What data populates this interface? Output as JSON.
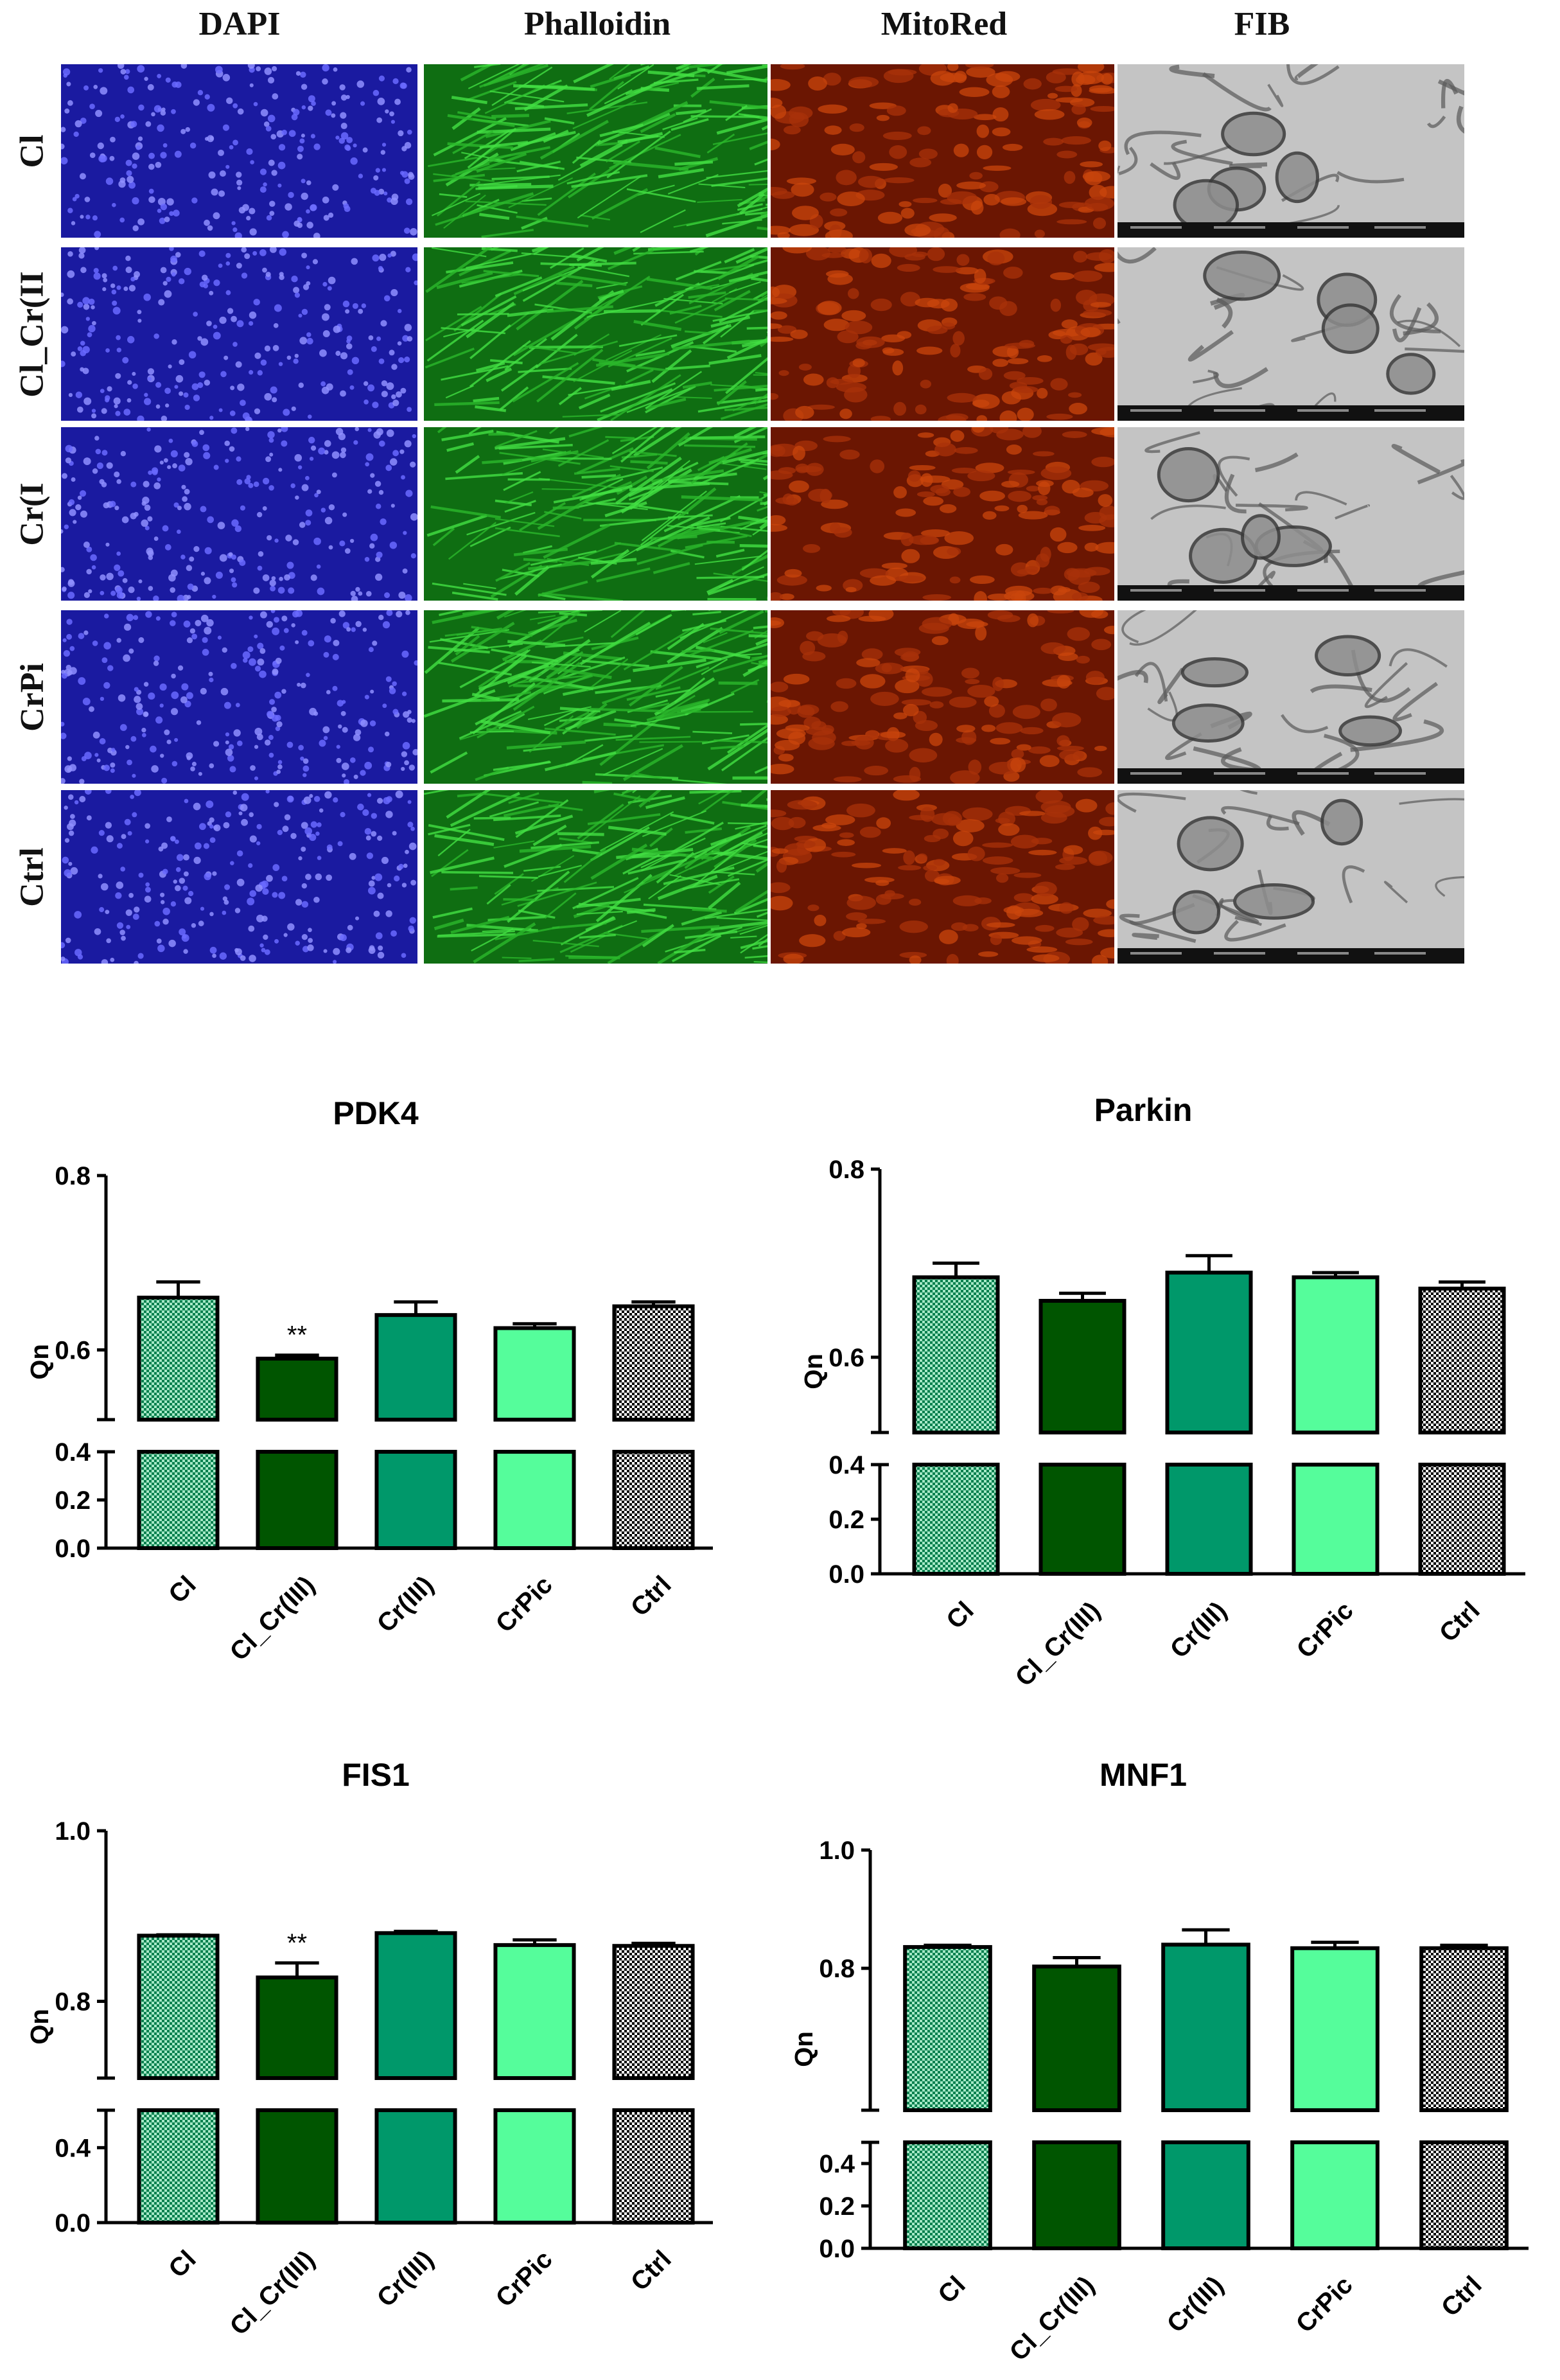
{
  "micrographs": {
    "columns": [
      "DAPI",
      "Phalloidin",
      "MitoRed",
      "FIB"
    ],
    "rows": [
      "Cl",
      "Cl_Cr(II",
      "Cr(I",
      "CrPi",
      "Ctrl"
    ],
    "colors": {
      "dapi": "#1f1fa8",
      "phalloidin": "#1c9a1c",
      "mitored": "#8a1e05",
      "fib": "#c8c8c8"
    }
  },
  "chart_data": [
    {
      "type": "bar",
      "title": "PDK4",
      "ylabel": "Qn",
      "categories": [
        "Cl",
        "Cl_Cr(III)",
        "Cr(III)",
        "CrPic",
        "Ctrl"
      ],
      "values": [
        0.66,
        0.59,
        0.64,
        0.625,
        0.65
      ],
      "errors": [
        0.018,
        0.004,
        0.015,
        0.005,
        0.005
      ],
      "annotations": [
        "",
        "**",
        "",
        "",
        ""
      ],
      "broken_axis": {
        "lower": [
          0,
          0.4
        ],
        "upper": [
          0.52,
          0.8
        ]
      },
      "yticks_lower": [
        "0.0",
        "0.2",
        "0.4"
      ],
      "yticks_upper": [
        "0.6",
        "0.8"
      ],
      "ytick_values_lower": [
        0,
        0.2,
        0.4
      ],
      "ytick_values_upper": [
        0.6,
        0.8
      ],
      "bar_styles": [
        "check-green",
        "dark",
        "medium",
        "light",
        "check-black"
      ]
    },
    {
      "type": "bar",
      "title": "Parkin",
      "ylabel": "Qn",
      "categories": [
        "Cl",
        "Cl_Cr(III)",
        "Cr(III)",
        "CrPic",
        "Ctrl"
      ],
      "values": [
        0.685,
        0.66,
        0.69,
        0.685,
        0.673
      ],
      "errors": [
        0.015,
        0.008,
        0.018,
        0.005,
        0.007
      ],
      "annotations": [
        "",
        "",
        "",
        "",
        ""
      ],
      "broken_axis": {
        "lower": [
          0,
          0.4
        ],
        "upper": [
          0.52,
          0.8
        ]
      },
      "yticks_lower": [
        "0.0",
        "0.2",
        "0.4"
      ],
      "yticks_upper": [
        "0.6",
        "0.8"
      ],
      "ytick_values_lower": [
        0,
        0.2,
        0.4
      ],
      "ytick_values_upper": [
        0.6,
        0.8
      ],
      "bar_styles": [
        "check-green",
        "dark",
        "medium",
        "light",
        "check-black"
      ]
    },
    {
      "type": "bar",
      "title": "FIS1",
      "ylabel": "Qn",
      "categories": [
        "Cl",
        "Cl_Cr(III)",
        "Cr(III)",
        "CrPic",
        "Ctrl"
      ],
      "values": [
        0.877,
        0.828,
        0.88,
        0.866,
        0.865
      ],
      "errors": [
        0.001,
        0.017,
        0.002,
        0.006,
        0.003
      ],
      "annotations": [
        "",
        "**",
        "",
        "",
        ""
      ],
      "broken_axis": {
        "lower": [
          0,
          0.6
        ],
        "upper": [
          0.71,
          1.0
        ]
      },
      "yticks_lower": [
        "0.0",
        "0.4"
      ],
      "yticks_upper": [
        "0.8",
        "1.0"
      ],
      "ytick_values_lower": [
        0,
        0.4
      ],
      "ytick_values_upper": [
        0.8,
        1.0
      ],
      "bar_styles": [
        "check-green",
        "dark",
        "medium",
        "light",
        "check-black"
      ]
    },
    {
      "type": "bar",
      "title": "MNF1",
      "ylabel": "Qn",
      "categories": [
        "Cl",
        "Cl_Cr(III)",
        "Cr(III)",
        "CrPic",
        "Ctrl"
      ],
      "values": [
        0.836,
        0.803,
        0.84,
        0.834,
        0.834
      ],
      "errors": [
        0.003,
        0.015,
        0.025,
        0.01,
        0.005
      ],
      "annotations": [
        "",
        "",
        "",
        "",
        ""
      ],
      "broken_axis": {
        "lower": [
          0,
          0.5
        ],
        "upper": [
          0.56,
          1.0
        ]
      },
      "yticks_lower": [
        "0.0",
        "0.2",
        "0.4"
      ],
      "yticks_upper": [
        "0.8",
        "1.0"
      ],
      "ytick_values_lower": [
        0,
        0.2,
        0.4
      ],
      "ytick_values_upper": [
        0.8,
        1.0
      ],
      "bar_styles": [
        "check-green",
        "dark",
        "medium",
        "light",
        "check-black"
      ]
    }
  ],
  "bar_colors": {
    "dark": "#005500",
    "medium": "#00986a",
    "light": "#55fd9b",
    "check_green_a": "#05804e",
    "check_green_b": "#a6e8c6",
    "check_black_a": "#000000",
    "check_black_b": "#ffffff"
  }
}
